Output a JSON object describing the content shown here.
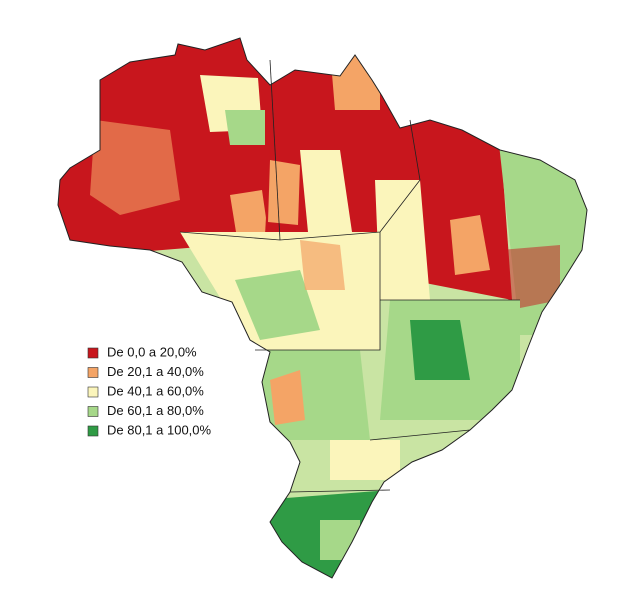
{
  "legend": {
    "items": [
      {
        "label": "De 0,0 a 20,0%",
        "color": "#c8161d"
      },
      {
        "label": "De 20,1 a 40,0%",
        "color": "#f4a466"
      },
      {
        "label": "De 40,1 a 60,0%",
        "color": "#fbf5bb"
      },
      {
        "label": "De 60,1 a 80,0%",
        "color": "#a6d889"
      },
      {
        "label": "De 80,1 a 100,0%",
        "color": "#2f9b45"
      }
    ]
  }
}
